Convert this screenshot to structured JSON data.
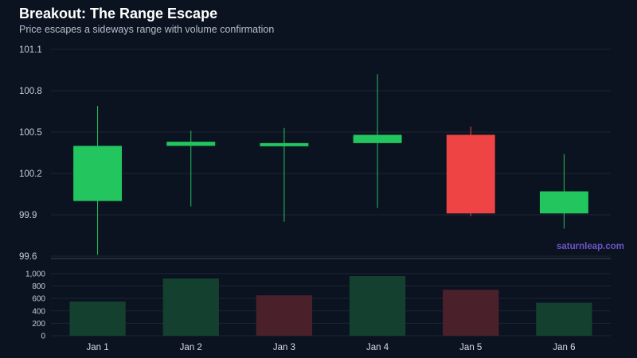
{
  "title": "Breakout: The Range Escape",
  "subtitle": "Price escapes a sideways range with volume confirmation",
  "watermark": "saturnleap.com",
  "colors": {
    "background": "#0b1220",
    "up": "#22c55e",
    "down": "#ef4444",
    "volume_up": "#14412f",
    "volume_down": "#4a212a",
    "grid": "#1c2534"
  },
  "chart_data": [
    {
      "type": "candlestick",
      "title": "Breakout: The Range Escape",
      "subtitle": "Price escapes a sideways range with volume confirmation",
      "categories": [
        "Jan 1",
        "Jan 2",
        "Jan 3",
        "Jan 4",
        "Jan 5",
        "Jan 6"
      ],
      "ohlc": [
        {
          "open": 100.0,
          "high": 100.69,
          "low": 99.61,
          "close": 100.4
        },
        {
          "open": 100.4,
          "high": 100.51,
          "low": 99.96,
          "close": 100.43
        },
        {
          "open": 100.42,
          "high": 100.53,
          "low": 99.85,
          "close": 100.42
        },
        {
          "open": 100.42,
          "high": 100.92,
          "low": 99.95,
          "close": 100.48
        },
        {
          "open": 100.48,
          "high": 100.54,
          "low": 99.89,
          "close": 99.91
        },
        {
          "open": 99.91,
          "high": 100.34,
          "low": 99.8,
          "close": 100.07
        }
      ],
      "yticks": [
        "99.6",
        "99.9",
        "100.2",
        "100.5",
        "100.8",
        "101.1"
      ],
      "ylim": [
        99.6,
        101.1
      ],
      "grid": true
    },
    {
      "type": "bar",
      "categories": [
        "Jan 1",
        "Jan 2",
        "Jan 3",
        "Jan 4",
        "Jan 5",
        "Jan 6"
      ],
      "values": [
        550,
        920,
        650,
        960,
        740,
        530
      ],
      "directions": [
        "up",
        "up",
        "down",
        "up",
        "down",
        "up"
      ],
      "yticks": [
        "0",
        "200",
        "400",
        "600",
        "800",
        "1,000"
      ],
      "ylim": [
        0,
        1050
      ],
      "grid": true
    }
  ]
}
